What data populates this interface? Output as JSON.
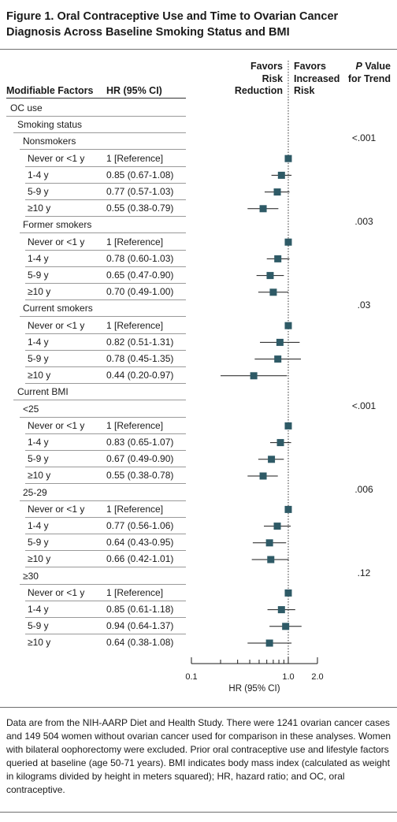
{
  "title": "Figure 1. Oral Contraceptive Use and Time to Ovarian Cancer Diagnosis Across Baseline Smoking Status and BMI",
  "headers": {
    "factors": "Modifiable Factors",
    "hr": "HR (95% CI)",
    "favors_left": [
      "Favors",
      "Risk",
      "Reduction"
    ],
    "favors_right": [
      "Favors",
      "Increased",
      "Risk"
    ],
    "pvalue": [
      "P Value",
      "for Trend"
    ]
  },
  "rows": [
    {
      "label": "OC use",
      "level": 0
    },
    {
      "label": "Smoking status",
      "level": 1
    },
    {
      "label": "Nonsmokers",
      "level": 2,
      "p": "<.001"
    },
    {
      "label": "Never or <1 y",
      "level": 3,
      "hr": "1 [Reference]",
      "est": 1.0
    },
    {
      "label": "1-4 y",
      "level": 3,
      "hr": "0.85 (0.67-1.08)",
      "est": 0.85,
      "lo": 0.67,
      "hi": 1.08
    },
    {
      "label": "5-9 y",
      "level": 3,
      "hr": "0.77 (0.57-1.03)",
      "est": 0.77,
      "lo": 0.57,
      "hi": 1.03
    },
    {
      "label": "≥10 y",
      "level": 3,
      "hr": "0.55 (0.38-0.79)",
      "est": 0.55,
      "lo": 0.38,
      "hi": 0.79
    },
    {
      "label": "Former smokers",
      "level": 2,
      "p": ".003"
    },
    {
      "label": "Never or <1 y",
      "level": 3,
      "hr": "1 [Reference]",
      "est": 1.0
    },
    {
      "label": "1-4 y",
      "level": 3,
      "hr": "0.78 (0.60-1.03)",
      "est": 0.78,
      "lo": 0.6,
      "hi": 1.03
    },
    {
      "label": "5-9 y",
      "level": 3,
      "hr": "0.65 (0.47-0.90)",
      "est": 0.65,
      "lo": 0.47,
      "hi": 0.9
    },
    {
      "label": "≥10 y",
      "level": 3,
      "hr": "0.70 (0.49-1.00)",
      "est": 0.7,
      "lo": 0.49,
      "hi": 1.0
    },
    {
      "label": "Current smokers",
      "level": 2,
      "p": ".03"
    },
    {
      "label": "Never or <1 y",
      "level": 3,
      "hr": "1 [Reference]",
      "est": 1.0
    },
    {
      "label": "1-4 y",
      "level": 3,
      "hr": "0.82 (0.51-1.31)",
      "est": 0.82,
      "lo": 0.51,
      "hi": 1.31
    },
    {
      "label": "5-9 y",
      "level": 3,
      "hr": "0.78 (0.45-1.35)",
      "est": 0.78,
      "lo": 0.45,
      "hi": 1.35
    },
    {
      "label": "≥10 y",
      "level": 3,
      "hr": "0.44 (0.20-0.97)",
      "est": 0.44,
      "lo": 0.2,
      "hi": 0.97
    },
    {
      "label": "Current BMI",
      "level": 1
    },
    {
      "label": "<25",
      "level": 2,
      "p": "<.001"
    },
    {
      "label": "Never or <1 y",
      "level": 3,
      "hr": "1 [Reference]",
      "est": 1.0
    },
    {
      "label": "1-4 y",
      "level": 3,
      "hr": "0.83 (0.65-1.07)",
      "est": 0.83,
      "lo": 0.65,
      "hi": 1.07
    },
    {
      "label": "5-9 y",
      "level": 3,
      "hr": "0.67 (0.49-0.90)",
      "est": 0.67,
      "lo": 0.49,
      "hi": 0.9
    },
    {
      "label": "≥10 y",
      "level": 3,
      "hr": "0.55 (0.38-0.78)",
      "est": 0.55,
      "lo": 0.38,
      "hi": 0.78
    },
    {
      "label": "25-29",
      "level": 2,
      "p": ".006"
    },
    {
      "label": "Never or <1 y",
      "level": 3,
      "hr": "1 [Reference]",
      "est": 1.0
    },
    {
      "label": "1-4 y",
      "level": 3,
      "hr": "0.77 (0.56-1.06)",
      "est": 0.77,
      "lo": 0.56,
      "hi": 1.06
    },
    {
      "label": "5-9 y",
      "level": 3,
      "hr": "0.64 (0.43-0.95)",
      "est": 0.64,
      "lo": 0.43,
      "hi": 0.95
    },
    {
      "label": "≥10 y",
      "level": 3,
      "hr": "0.66 (0.42-1.01)",
      "est": 0.66,
      "lo": 0.42,
      "hi": 1.01
    },
    {
      "label": "≥30",
      "level": 2,
      "p": ".12"
    },
    {
      "label": "Never or <1 y",
      "level": 3,
      "hr": "1 [Reference]",
      "est": 1.0
    },
    {
      "label": "1-4 y",
      "level": 3,
      "hr": "0.85 (0.61-1.18)",
      "est": 0.85,
      "lo": 0.61,
      "hi": 1.18
    },
    {
      "label": "5-9 y",
      "level": 3,
      "hr": "0.94 (0.64-1.37)",
      "est": 0.94,
      "lo": 0.64,
      "hi": 1.37
    },
    {
      "label": "≥10 y",
      "level": 3,
      "hr": "0.64 (0.38-1.08)",
      "est": 0.64,
      "lo": 0.38,
      "hi": 1.08
    }
  ],
  "chart_data": {
    "type": "forest",
    "title": "Figure 1. Oral Contraceptive Use and Time to Ovarian Cancer Diagnosis Across Baseline Smoking Status and BMI",
    "xlabel": "HR (95% CI)",
    "xscale": "log",
    "xlim": [
      0.1,
      2.0
    ],
    "xticks": [
      0.1,
      1.0,
      2.0
    ],
    "xtick_labels": [
      "0.1",
      "1.0",
      "2.0"
    ],
    "reference_line": 1.0,
    "marker_color": "#2e5a66",
    "line_color": "#1a1a1a"
  },
  "footnote": "Data are from the NIH-AARP Diet and Health Study. There were 1241 ovarian cancer cases and 149 504 women without ovarian cancer used for comparison in these analyses. Women with bilateral oophorectomy were excluded. Prior oral contraceptive use and lifestyle factors queried at baseline (age 50-71 years). BMI indicates body mass index (calculated as weight in kilograms divided by height in meters squared); HR, hazard ratio; and OC, oral contraceptive."
}
